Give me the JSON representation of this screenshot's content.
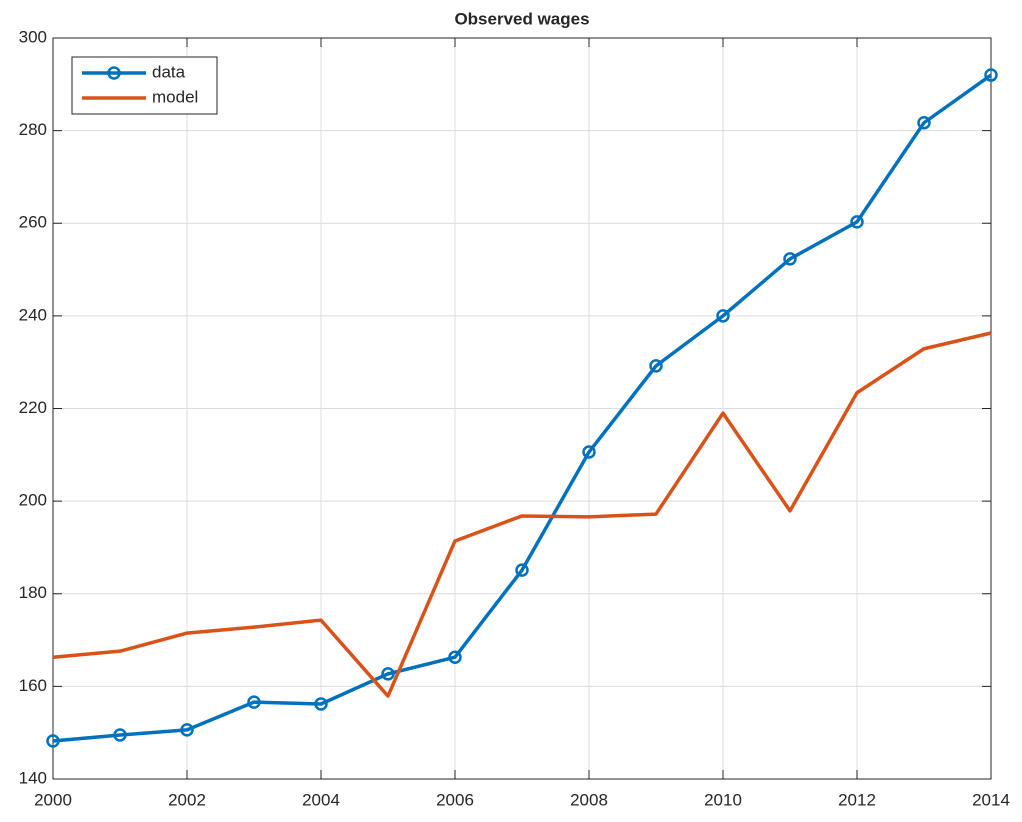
{
  "chart_data": {
    "type": "line",
    "title": "Observed wages",
    "x": [
      2000,
      2001,
      2002,
      2003,
      2004,
      2005,
      2006,
      2007,
      2008,
      2009,
      2010,
      2011,
      2012,
      2013,
      2014
    ],
    "series": [
      {
        "name": "data",
        "color": "#0072bd",
        "marker": "circle",
        "values": [
          148.2,
          149.5,
          150.6,
          156.6,
          156.2,
          162.7,
          166.3,
          185.1,
          210.6,
          229.2,
          240.0,
          252.3,
          260.3,
          281.7,
          292.0
        ]
      },
      {
        "name": "model",
        "color": "#d95319",
        "values": [
          166.3,
          167.6,
          171.5,
          172.8,
          174.3,
          157.9,
          191.4,
          196.8,
          196.6,
          197.2,
          219.0,
          197.9,
          223.4,
          232.9,
          236.3
        ]
      }
    ],
    "xlim": [
      2000,
      2014
    ],
    "xticks": [
      2000,
      2002,
      2004,
      2006,
      2008,
      2010,
      2012,
      2014
    ],
    "ylim": [
      140,
      300
    ],
    "yticks": [
      140,
      160,
      180,
      200,
      220,
      240,
      260,
      280,
      300
    ],
    "grid": true,
    "legend": "top-left"
  }
}
